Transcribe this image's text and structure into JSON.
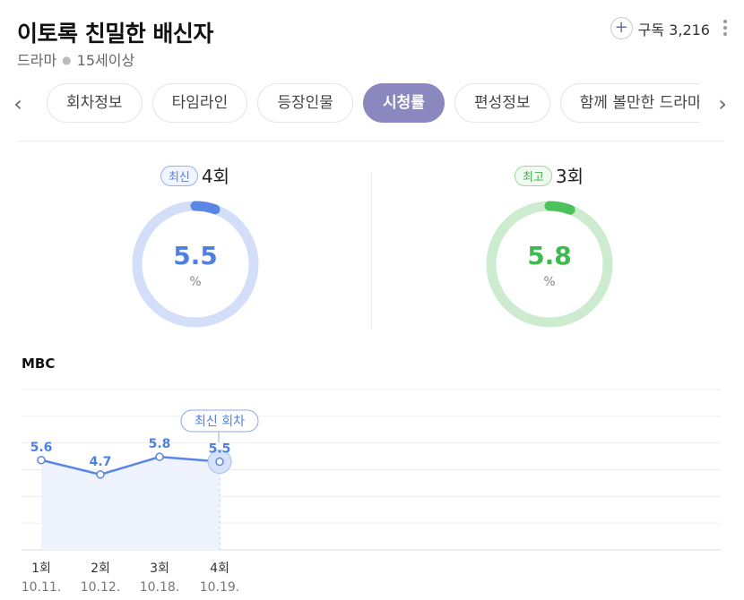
{
  "header": {
    "title": "이토록 친밀한 배신자",
    "genre": "드라마",
    "age_rating": "15세이상",
    "subscribe_label": "구독 3,216"
  },
  "tabs": [
    {
      "label": "회차정보",
      "active": false
    },
    {
      "label": "타임라인",
      "active": false
    },
    {
      "label": "등장인물",
      "active": false
    },
    {
      "label": "시청률",
      "active": true
    },
    {
      "label": "편성정보",
      "active": false
    },
    {
      "label": "함께 볼만한 드라마",
      "active": false
    }
  ],
  "latest": {
    "badge": "최신",
    "episode": "4회",
    "rating": "5.5",
    "unit": "%",
    "color": "#5b86e5",
    "track_color": "#d3dff8"
  },
  "best": {
    "badge": "최고",
    "episode": "3회",
    "rating": "5.8",
    "unit": "%",
    "color": "#4cc35a",
    "track_color": "#cdeccf"
  },
  "chart_data": {
    "type": "line",
    "title": "MBC",
    "categories": [
      "1회",
      "2회",
      "3회",
      "4회"
    ],
    "dates": [
      "10.11.",
      "10.12.",
      "10.18.",
      "10.19."
    ],
    "series": [
      {
        "values": [
          5.6,
          4.7,
          5.8,
          5.5
        ]
      }
    ],
    "ylim": [
      0,
      10
    ],
    "annotation": "최신 회차",
    "line_color": "#5b86e5",
    "fill_color": "#eef3fd",
    "grid": true
  }
}
